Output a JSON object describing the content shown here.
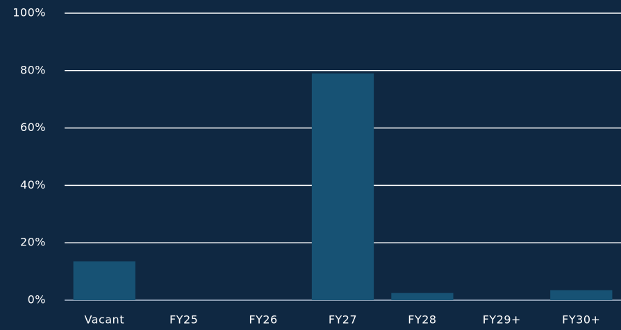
{
  "chart_data": {
    "type": "bar",
    "categories": [
      "Vacant",
      "FY25",
      "FY26",
      "FY27",
      "FY28",
      "FY29+",
      "FY30+"
    ],
    "values": [
      13.5,
      0,
      0,
      79,
      2.5,
      0,
      3.5
    ],
    "color": "#175274",
    "ylim": [
      0,
      100
    ],
    "yticks": [
      {
        "value": 0,
        "label": "0%"
      },
      {
        "value": 20,
        "label": "20%"
      },
      {
        "value": 40,
        "label": "40%"
      },
      {
        "value": 60,
        "label": "60%"
      },
      {
        "value": 80,
        "label": "80%"
      },
      {
        "value": 100,
        "label": "100%"
      }
    ],
    "grid": true
  }
}
